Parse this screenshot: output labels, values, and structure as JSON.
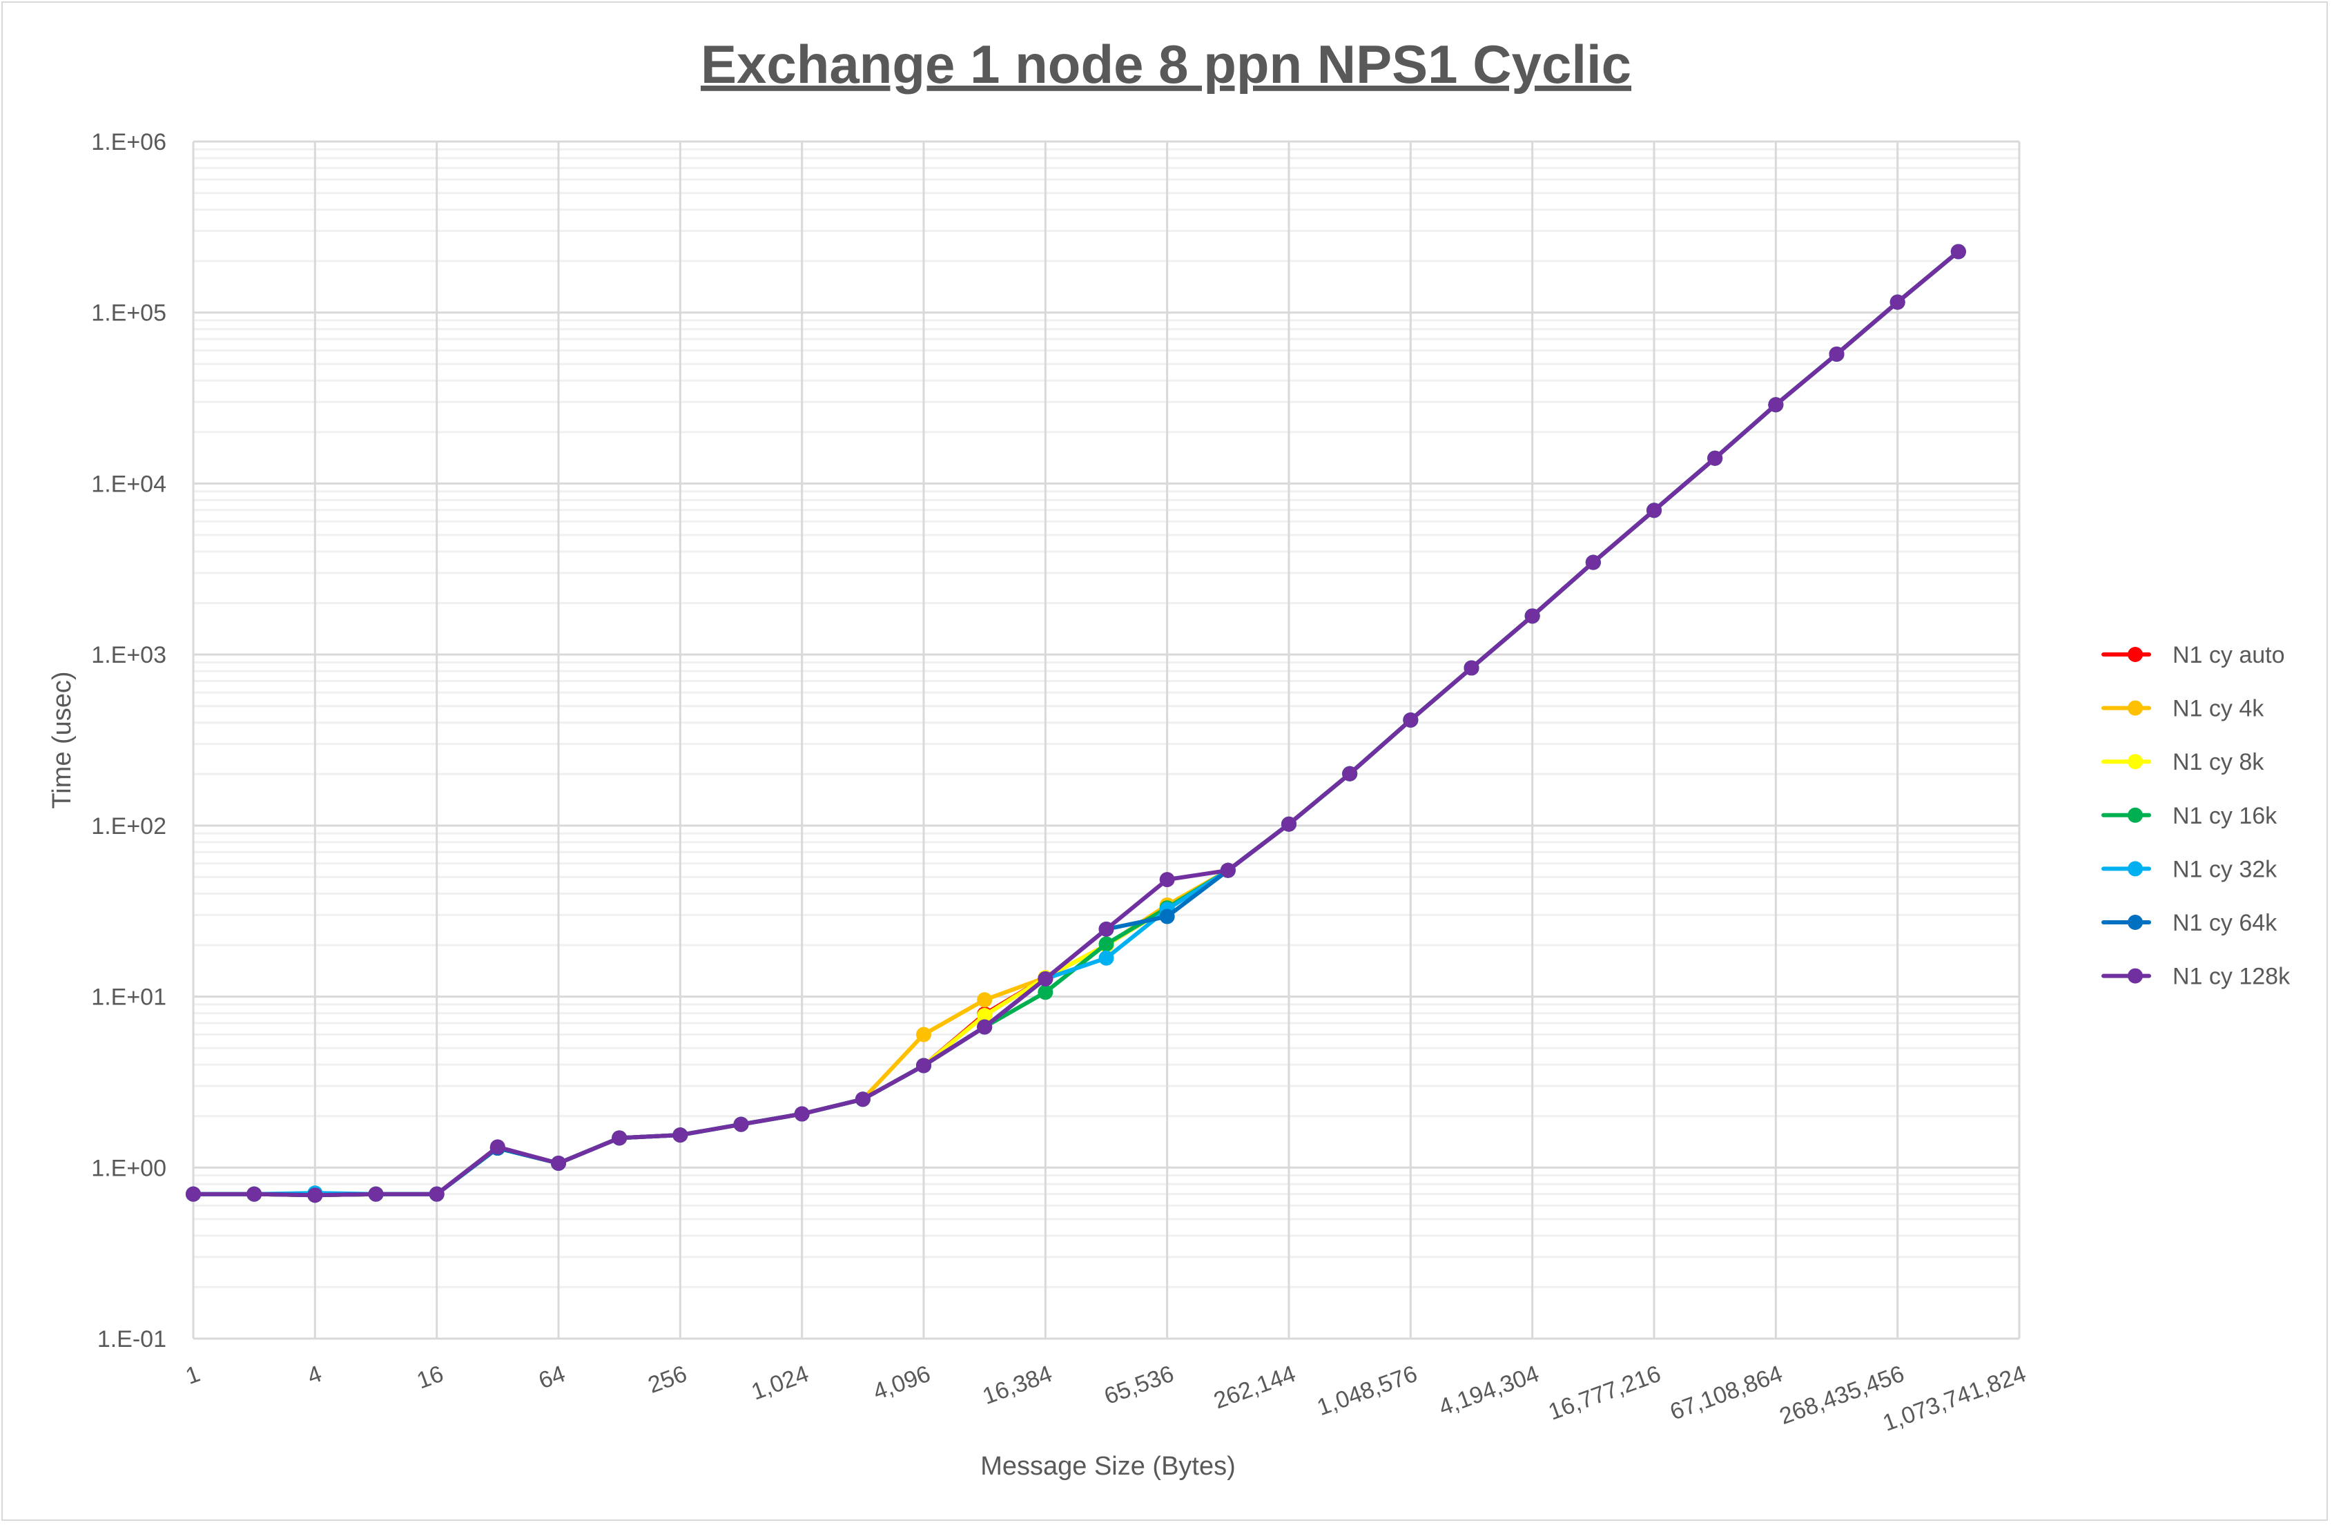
{
  "chart_data": {
    "type": "line",
    "title": "Exchange 1 node 8 ppn NPS1 Cyclic",
    "xlabel": "Message Size (Bytes)",
    "ylabel": "Time (usec)",
    "x_scale": "log2",
    "y_scale": "log10",
    "xlim": [
      1,
      1073741824
    ],
    "ylim": [
      0.1,
      1000000
    ],
    "grid": true,
    "legend_position": "right",
    "x_tick_labels": [
      "1",
      "4",
      "16",
      "64",
      "256",
      "1,024",
      "4,096",
      "16,384",
      "65,536",
      "262,144",
      "1,048,576",
      "4,194,304",
      "16,777,216",
      "67,108,864",
      "268,435,456",
      "1,073,741,824"
    ],
    "y_tick_labels": [
      "1.E-01",
      "1.E+00",
      "1.E+01",
      "1.E+02",
      "1.E+03",
      "1.E+04",
      "1.E+05",
      "1.E+06"
    ],
    "x": [
      1,
      2,
      4,
      8,
      16,
      32,
      64,
      128,
      256,
      512,
      1024,
      2048,
      4096,
      8192,
      16384,
      32768,
      65536,
      131072,
      262144,
      524288,
      1048576,
      2097152,
      4194304,
      8388608,
      16777216,
      33554432,
      67108864,
      134217728,
      268435456,
      536870912
    ],
    "series": [
      {
        "name": "N1 cy auto",
        "color": "#ff0000",
        "values": [
          0.7,
          0.7,
          0.69,
          0.7,
          0.7,
          1.3,
          1.06,
          1.49,
          1.55,
          1.79,
          2.06,
          2.51,
          3.95,
          7.9,
          12.9,
          20.0,
          33.0,
          54.7,
          102,
          201,
          414,
          835,
          1680,
          3460,
          6970,
          14060,
          28900,
          57100,
          115000,
          227000
        ]
      },
      {
        "name": "N1 cy 4k",
        "color": "#ffc000",
        "values": [
          0.7,
          0.7,
          0.69,
          0.7,
          0.7,
          1.3,
          1.06,
          1.49,
          1.55,
          1.79,
          2.06,
          2.51,
          6.0,
          9.57,
          12.9,
          20.0,
          34.3,
          54.7,
          102,
          201,
          414,
          835,
          1680,
          3460,
          6970,
          14060,
          28900,
          57100,
          115000,
          227000
        ]
      },
      {
        "name": "N1 cy 8k",
        "color": "#ffff00",
        "values": [
          0.7,
          0.7,
          0.69,
          0.7,
          0.7,
          1.3,
          1.06,
          1.49,
          1.55,
          1.79,
          2.06,
          2.51,
          3.95,
          7.75,
          12.9,
          20.0,
          33.0,
          54.7,
          102,
          201,
          414,
          835,
          1680,
          3460,
          6970,
          14060,
          28900,
          57100,
          115000,
          227000
        ]
      },
      {
        "name": "N1 cy 16k",
        "color": "#00b050",
        "values": [
          0.7,
          0.7,
          0.69,
          0.7,
          0.7,
          1.3,
          1.06,
          1.49,
          1.55,
          1.79,
          2.06,
          2.51,
          3.95,
          6.64,
          10.6,
          20.3,
          33.0,
          54.7,
          102,
          201,
          414,
          835,
          1680,
          3460,
          6970,
          14060,
          28900,
          57100,
          115000,
          227000
        ]
      },
      {
        "name": "N1 cy 32k",
        "color": "#00b0f0",
        "values": [
          0.7,
          0.7,
          0.71,
          0.7,
          0.7,
          1.3,
          1.06,
          1.49,
          1.55,
          1.79,
          2.06,
          2.51,
          3.95,
          6.64,
          12.7,
          16.8,
          32.3,
          54.7,
          102,
          201,
          414,
          835,
          1680,
          3460,
          6970,
          14060,
          28900,
          57100,
          115000,
          227000
        ]
      },
      {
        "name": "N1 cy 64k",
        "color": "#0070c0",
        "values": [
          0.7,
          0.7,
          0.69,
          0.7,
          0.7,
          1.3,
          1.06,
          1.49,
          1.55,
          1.79,
          2.06,
          2.51,
          3.95,
          6.64,
          12.7,
          24.8,
          29.4,
          54.7,
          102,
          201,
          414,
          835,
          1680,
          3460,
          6970,
          14060,
          28900,
          57100,
          115000,
          227000
        ]
      },
      {
        "name": "N1 cy 128k",
        "color": "#7030a0",
        "values": [
          0.7,
          0.7,
          0.69,
          0.7,
          0.7,
          1.32,
          1.06,
          1.49,
          1.55,
          1.79,
          2.06,
          2.51,
          3.95,
          6.64,
          12.7,
          24.8,
          48.3,
          54.7,
          102,
          201,
          414,
          835,
          1680,
          3460,
          6970,
          14060,
          28900,
          57100,
          115000,
          227000
        ]
      }
    ]
  }
}
